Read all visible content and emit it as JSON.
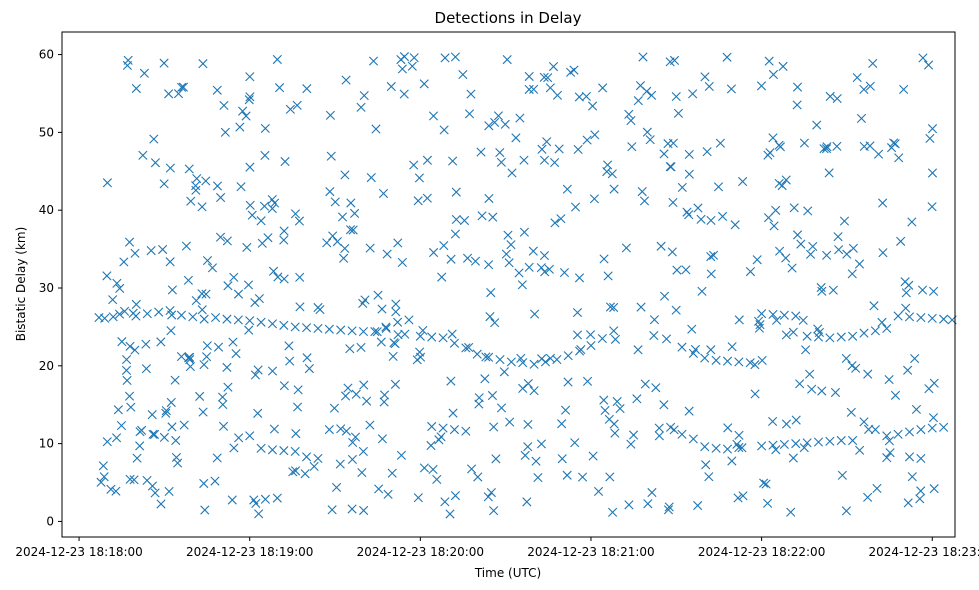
{
  "chart_data": {
    "type": "scatter",
    "title": "Detections in Delay",
    "xlabel": "Time (UTC)",
    "ylabel": "Bistatic Delay (km)",
    "xlim": [
      "2024-12-23 18:17:54",
      "2024-12-23 18:23:08"
    ],
    "ylim": [
      -2.0,
      62.9
    ],
    "xticks": [
      "2024-12-23 18:18:00",
      "2024-12-23 18:19:00",
      "2024-12-23 18:20:00",
      "2024-12-23 18:21:00",
      "2024-12-23 18:22:00",
      "2024-12-23 18:23:00"
    ],
    "yticks": [
      "0",
      "10",
      "20",
      "30",
      "40",
      "50",
      "60"
    ],
    "marker": "x",
    "color": "#1f77b4",
    "grid": false,
    "track_points": [
      [
        "18:18:07",
        26.2
      ],
      [
        "18:18:09",
        26.1
      ],
      [
        "18:18:12",
        26.3
      ],
      [
        "18:18:16",
        27.0
      ],
      [
        "18:18:20",
        26.4
      ],
      [
        "18:18:24",
        26.7
      ],
      [
        "18:18:28",
        26.9
      ],
      [
        "18:18:32",
        27.1
      ],
      [
        "18:18:36",
        26.5
      ],
      [
        "18:18:40",
        26.3
      ],
      [
        "18:18:44",
        26.0
      ],
      [
        "18:18:48",
        26.2
      ],
      [
        "18:18:52",
        26.0
      ],
      [
        "18:18:56",
        25.9
      ],
      [
        "18:19:00",
        25.8
      ],
      [
        "18:19:04",
        25.6
      ],
      [
        "18:19:08",
        25.4
      ],
      [
        "18:19:12",
        25.2
      ],
      [
        "18:19:16",
        25.0
      ],
      [
        "18:19:20",
        24.9
      ],
      [
        "18:19:24",
        24.8
      ],
      [
        "18:19:28",
        24.7
      ],
      [
        "18:19:32",
        24.6
      ],
      [
        "18:19:36",
        24.5
      ],
      [
        "18:19:40",
        24.4
      ],
      [
        "18:19:44",
        24.4
      ],
      [
        "18:19:48",
        24.8
      ],
      [
        "18:19:52",
        25.6
      ],
      [
        "18:19:56",
        25.9
      ],
      [
        "18:20:00",
        23.8
      ],
      [
        "18:20:04",
        23.7
      ],
      [
        "18:20:08",
        23.6
      ],
      [
        "18:20:12",
        22.9
      ],
      [
        "18:20:16",
        22.3
      ],
      [
        "18:20:20",
        21.5
      ],
      [
        "18:20:24",
        21.1
      ],
      [
        "18:20:28",
        20.8
      ],
      [
        "18:20:32",
        20.5
      ],
      [
        "18:20:36",
        20.4
      ],
      [
        "18:20:40",
        20.2
      ],
      [
        "18:20:44",
        20.5
      ],
      [
        "18:20:48",
        20.8
      ],
      [
        "18:20:52",
        21.3
      ],
      [
        "18:20:56",
        21.9
      ],
      [
        "18:21:00",
        22.6
      ],
      [
        "18:21:04",
        23.5
      ],
      [
        "18:21:08",
        24.5
      ],
      [
        "18:21:32",
        22.4
      ],
      [
        "18:21:36",
        21.6
      ],
      [
        "18:21:40",
        21.0
      ],
      [
        "18:21:44",
        20.7
      ],
      [
        "18:21:48",
        20.6
      ],
      [
        "18:21:52",
        20.5
      ],
      [
        "18:21:56",
        20.4
      ],
      [
        "18:22:00",
        26.7
      ],
      [
        "18:22:04",
        26.6
      ],
      [
        "18:22:08",
        26.5
      ],
      [
        "18:22:12",
        26.4
      ],
      [
        "18:22:16",
        23.8
      ],
      [
        "18:22:20",
        23.7
      ],
      [
        "18:22:24",
        23.6
      ],
      [
        "18:22:28",
        23.7
      ],
      [
        "18:22:32",
        23.8
      ],
      [
        "18:22:36",
        24.2
      ],
      [
        "18:22:40",
        24.5
      ],
      [
        "18:22:44",
        24.8
      ],
      [
        "18:22:48",
        26.4
      ],
      [
        "18:22:52",
        26.3
      ],
      [
        "18:22:56",
        26.2
      ],
      [
        "18:23:00",
        26.1
      ],
      [
        "18:23:04",
        26.0
      ],
      [
        "18:23:07",
        25.9
      ],
      [
        "18:18:22",
        11.7
      ],
      [
        "18:18:26",
        11.2
      ],
      [
        "18:18:30",
        10.8
      ],
      [
        "18:18:34",
        10.4
      ],
      [
        "18:19:00",
        11.0
      ],
      [
        "18:19:04",
        9.4
      ],
      [
        "18:19:08",
        9.2
      ],
      [
        "18:19:12",
        9.1
      ],
      [
        "18:19:16",
        9.0
      ],
      [
        "18:19:20",
        8.3
      ],
      [
        "18:19:24",
        8.1
      ],
      [
        "18:19:28",
        11.8
      ],
      [
        "18:19:32",
        11.9
      ],
      [
        "18:19:36",
        1.6
      ],
      [
        "18:20:04",
        12.2
      ],
      [
        "18:20:08",
        12.0
      ],
      [
        "18:20:12",
        11.8
      ],
      [
        "18:20:16",
        11.6
      ],
      [
        "18:20:36",
        17.1
      ],
      [
        "18:20:40",
        16.8
      ],
      [
        "18:21:24",
        12.0
      ],
      [
        "18:21:28",
        12.1
      ],
      [
        "18:21:32",
        11.2
      ],
      [
        "18:21:36",
        10.6
      ],
      [
        "18:21:40",
        9.6
      ],
      [
        "18:21:44",
        9.4
      ],
      [
        "18:21:48",
        9.3
      ],
      [
        "18:21:52",
        9.5
      ],
      [
        "18:22:00",
        9.7
      ],
      [
        "18:22:04",
        9.8
      ],
      [
        "18:22:08",
        9.9
      ],
      [
        "18:22:12",
        10.0
      ],
      [
        "18:22:16",
        10.1
      ],
      [
        "18:22:20",
        10.2
      ],
      [
        "18:22:24",
        10.3
      ],
      [
        "18:22:28",
        10.4
      ],
      [
        "18:22:32",
        10.4
      ],
      [
        "18:22:36",
        12.8
      ],
      [
        "18:22:40",
        11.8
      ],
      [
        "18:22:44",
        11.0
      ],
      [
        "18:22:48",
        11.2
      ],
      [
        "18:22:52",
        11.5
      ],
      [
        "18:22:56",
        11.8
      ],
      [
        "18:23:00",
        12.0
      ],
      [
        "18:23:04",
        12.1
      ],
      [
        "18:22:44",
        8.2
      ],
      [
        "18:22:52",
        8.3
      ],
      [
        "18:22:56",
        8.1
      ]
    ]
  }
}
